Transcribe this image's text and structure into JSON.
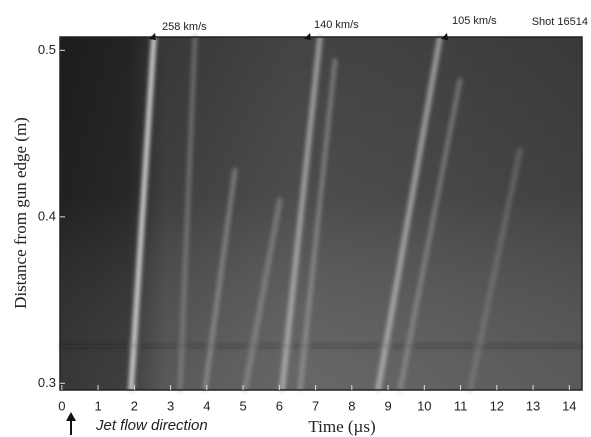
{
  "chart_data": {
    "type": "image",
    "annotations": [
      "258 km/s",
      "140 km/s",
      "105 km/s",
      "Shot 16514",
      "Jet flow direction"
    ],
    "x_label": "Time (µs)",
    "y_label": "Distance from gun edge (m)",
    "xlim": [
      -0.05,
      14.35
    ],
    "xticks": [
      0,
      1,
      2,
      3,
      4,
      5,
      6,
      7,
      8,
      9,
      10,
      11,
      12,
      13,
      14
    ],
    "ylim": [
      0.296,
      0.508
    ],
    "yticks": [
      0.3,
      0.4,
      0.5
    ]
  }
}
